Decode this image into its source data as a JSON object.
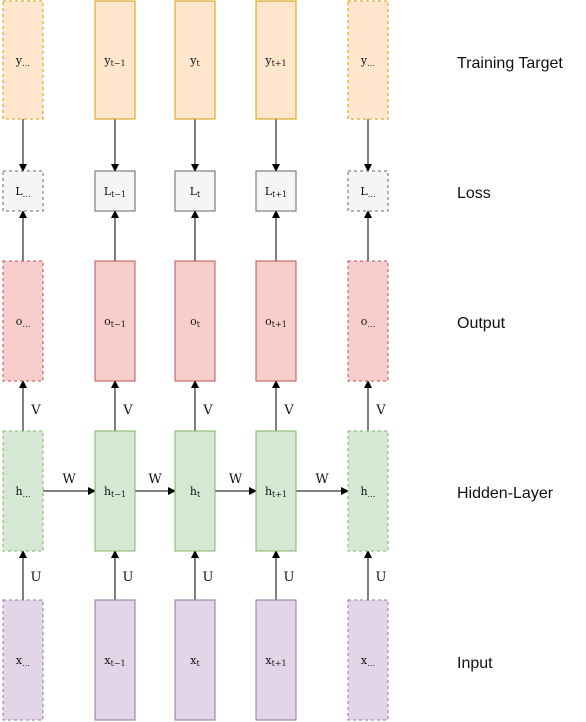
{
  "colors": {
    "target_fill": "#ffe6cc",
    "target_stroke": "#d79b00",
    "loss_fill": "#f5f5f5",
    "loss_stroke": "#666666",
    "output_fill": "#f8cecc",
    "output_stroke": "#b85450",
    "hidden_fill": "#d5e8d4",
    "hidden_stroke": "#82b366",
    "input_fill": "#e1d5e7",
    "input_stroke": "#9673a6",
    "arrow": "#000000"
  },
  "row_labels": {
    "target": "Training Target",
    "loss": "Loss",
    "output": "Output",
    "hidden": "Hidden-Layer",
    "input": "Input"
  },
  "weights": {
    "input_to_hidden": "U",
    "hidden_to_output": "V",
    "hidden_to_hidden": "W"
  },
  "columns": [
    {
      "id": "prev",
      "dashed": true,
      "target": {
        "main": "y",
        "sub": "…"
      },
      "loss": {
        "main": "L",
        "sub": "…"
      },
      "output": {
        "main": "o",
        "sub": "…"
      },
      "hidden": {
        "main": "h",
        "sub": "…"
      },
      "input": {
        "main": "x",
        "sub": "…"
      }
    },
    {
      "id": "t-1",
      "dashed": false,
      "target": {
        "main": "y",
        "sub": "t−1"
      },
      "loss": {
        "main": "L",
        "sub": "t−1"
      },
      "output": {
        "main": "o",
        "sub": "t−1"
      },
      "hidden": {
        "main": "h",
        "sub": "t−1"
      },
      "input": {
        "main": "x",
        "sub": "t−1"
      }
    },
    {
      "id": "t",
      "dashed": false,
      "target": {
        "main": "y",
        "sub": "t"
      },
      "loss": {
        "main": "L",
        "sub": "t"
      },
      "output": {
        "main": "o",
        "sub": "t"
      },
      "hidden": {
        "main": "h",
        "sub": "t"
      },
      "input": {
        "main": "x",
        "sub": "t"
      }
    },
    {
      "id": "t+1",
      "dashed": false,
      "target": {
        "main": "y",
        "sub": "t+1"
      },
      "loss": {
        "main": "L",
        "sub": "t+1"
      },
      "output": {
        "main": "o",
        "sub": "t+1"
      },
      "hidden": {
        "main": "h",
        "sub": "t+1"
      },
      "input": {
        "main": "x",
        "sub": "t+1"
      }
    },
    {
      "id": "next",
      "dashed": true,
      "target": {
        "main": "y",
        "sub": "…"
      },
      "loss": {
        "main": "L",
        "sub": "…"
      },
      "output": {
        "main": "o",
        "sub": "…"
      },
      "hidden": {
        "main": "h",
        "sub": "…"
      },
      "input": {
        "main": "x",
        "sub": "…"
      }
    }
  ]
}
